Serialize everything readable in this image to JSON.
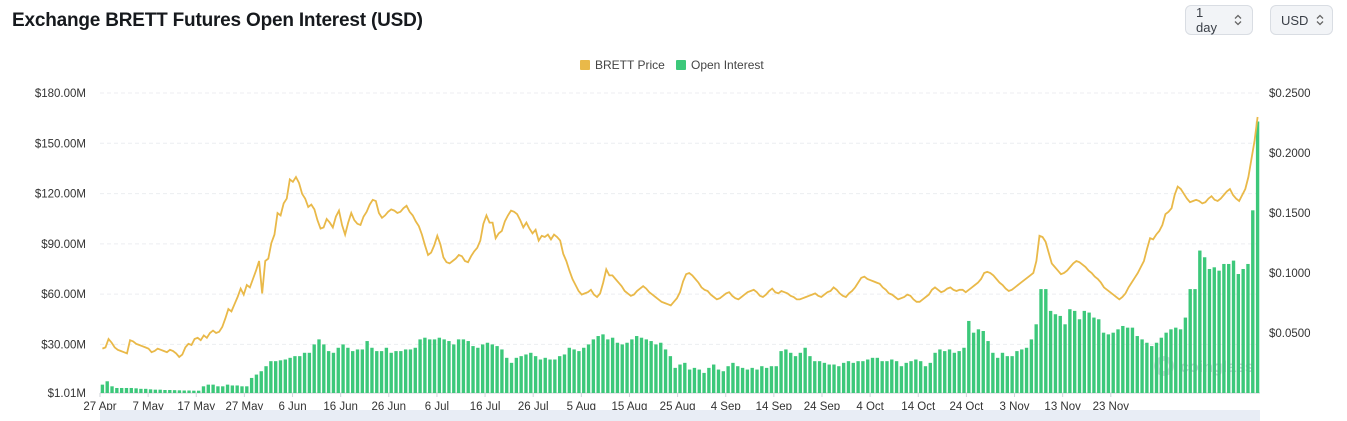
{
  "header": {
    "title": "Exchange BRETT Futures Open Interest (USD)",
    "interval_label": "1 day",
    "currency_label": "USD"
  },
  "watermark": "coinglass",
  "chart_data": {
    "type": "bar",
    "title": "Exchange BRETT Futures Open Interest (USD)",
    "legend": [
      "BRETT Price",
      "Open Interest"
    ],
    "legend_position": "top-center",
    "grid": true,
    "x_tick_labels": [
      "27 Apr",
      "7 May",
      "17 May",
      "27 May",
      "6 Jun",
      "16 Jun",
      "26 Jun",
      "6 Jul",
      "16 Jul",
      "26 Jul",
      "5 Aug",
      "15 Aug",
      "25 Aug",
      "4 Sep",
      "14 Sep",
      "24 Sep",
      "4 Oct",
      "14 Oct",
      "24 Oct",
      "3 Nov",
      "13 Nov",
      "23 Nov"
    ],
    "y_left_ticks": [
      "$1.01M",
      "$30.00M",
      "$60.00M",
      "$90.00M",
      "$120.00M",
      "$150.00M",
      "$180.00M"
    ],
    "y_right_ticks": [
      "$0.0500",
      "$0.1000",
      "$0.1500",
      "$0.2000",
      "$0.2500"
    ],
    "ylim_left": [
      1.01,
      180
    ],
    "ylim_right": [
      0,
      0.25
    ],
    "start_date": "27 Apr",
    "series": [
      {
        "name": "Open Interest",
        "type": "bar",
        "color": "#3cc87a",
        "values": [
          6,
          8,
          5,
          4,
          4,
          4,
          4,
          3.8,
          3.5,
          3.5,
          3.2,
          3,
          3,
          2.8,
          2.8,
          2.7,
          2.6,
          2.5,
          2.5,
          2.4,
          2.4,
          5,
          6,
          6,
          5,
          5,
          6,
          5.5,
          5.5,
          5,
          5,
          10,
          12,
          14,
          17,
          20,
          20,
          20.5,
          21,
          22,
          23,
          23,
          25,
          25,
          30,
          33,
          30,
          26,
          25,
          28,
          30,
          28,
          26,
          27,
          27,
          32,
          28,
          26,
          26,
          28,
          25,
          26,
          26,
          27,
          27,
          28,
          33,
          34,
          33,
          33,
          34,
          33,
          32,
          30,
          33,
          33,
          32,
          29,
          28,
          30,
          31,
          30,
          29,
          27,
          22,
          19,
          22,
          23,
          24,
          25,
          23,
          21,
          22,
          21,
          21,
          23,
          24,
          28,
          27,
          26,
          28,
          30,
          33,
          35,
          36,
          33,
          34,
          31,
          30,
          31,
          33,
          35,
          34,
          33,
          32,
          30,
          31,
          27,
          23,
          16,
          18,
          19,
          15,
          16,
          15,
          13,
          16,
          18,
          15,
          14,
          17,
          19,
          17,
          16,
          15,
          16,
          15,
          17,
          16,
          17,
          17,
          26,
          27,
          25,
          23,
          25,
          28,
          23,
          20,
          20,
          19,
          18,
          18,
          17,
          19,
          20,
          19,
          20,
          20,
          21,
          22,
          22,
          20,
          20,
          21,
          20,
          17,
          19,
          20,
          21,
          20,
          17,
          19,
          25,
          27,
          26,
          27,
          25,
          26,
          28,
          44,
          37,
          39,
          38,
          32,
          25,
          22,
          25,
          23,
          23,
          26,
          27,
          28,
          33,
          42,
          63,
          63,
          50,
          48,
          47,
          42,
          51,
          50,
          45,
          50,
          49,
          46,
          45,
          37,
          36,
          37,
          39,
          41,
          40,
          40,
          35,
          33,
          31,
          29,
          31,
          34,
          37,
          39,
          40,
          39,
          46,
          63,
          63,
          86,
          82,
          75,
          76,
          74,
          78,
          78,
          80,
          72,
          75,
          78,
          110,
          163
        ]
      },
      {
        "name": "BRETT Price",
        "type": "line",
        "color": "#e9b949",
        "values": [
          0.037,
          0.038,
          0.045,
          0.042,
          0.038,
          0.036,
          0.035,
          0.034,
          0.033,
          0.044,
          0.043,
          0.041,
          0.04,
          0.039,
          0.038,
          0.037,
          0.034,
          0.035,
          0.037,
          0.036,
          0.035,
          0.034,
          0.036,
          0.035,
          0.033,
          0.03,
          0.032,
          0.038,
          0.041,
          0.04,
          0.045,
          0.046,
          0.044,
          0.048,
          0.046,
          0.05,
          0.052,
          0.05,
          0.051,
          0.055,
          0.062,
          0.07,
          0.068,
          0.074,
          0.08,
          0.087,
          0.082,
          0.09,
          0.088,
          0.095,
          0.102,
          0.11,
          0.083,
          0.11,
          0.112,
          0.125,
          0.132,
          0.15,
          0.148,
          0.158,
          0.162,
          0.178,
          0.176,
          0.18,
          0.175,
          0.166,
          0.162,
          0.155,
          0.157,
          0.153,
          0.144,
          0.137,
          0.138,
          0.145,
          0.142,
          0.138,
          0.147,
          0.152,
          0.14,
          0.132,
          0.142,
          0.15,
          0.144,
          0.141,
          0.14,
          0.147,
          0.151,
          0.157,
          0.161,
          0.16,
          0.15,
          0.146,
          0.148,
          0.151,
          0.153,
          0.152,
          0.15,
          0.151,
          0.154,
          0.156,
          0.151,
          0.148,
          0.143,
          0.139,
          0.132,
          0.123,
          0.115,
          0.117,
          0.123,
          0.131,
          0.124,
          0.113,
          0.109,
          0.108,
          0.11,
          0.112,
          0.115,
          0.114,
          0.11,
          0.109,
          0.114,
          0.118,
          0.121,
          0.127,
          0.141,
          0.148,
          0.142,
          0.142,
          0.129,
          0.133,
          0.135,
          0.143,
          0.148,
          0.152,
          0.151,
          0.149,
          0.144,
          0.138,
          0.142,
          0.137,
          0.133,
          0.136,
          0.127,
          0.131,
          0.13,
          0.132,
          0.128,
          0.132,
          0.13,
          0.127,
          0.116,
          0.11,
          0.102,
          0.095,
          0.09,
          0.085,
          0.082,
          0.083,
          0.084,
          0.086,
          0.082,
          0.08,
          0.083,
          0.092,
          0.103,
          0.098,
          0.098,
          0.095,
          0.092,
          0.089,
          0.085,
          0.083,
          0.081,
          0.082,
          0.085,
          0.087,
          0.089,
          0.087,
          0.084,
          0.082,
          0.08,
          0.078,
          0.076,
          0.075,
          0.074,
          0.073,
          0.076,
          0.079,
          0.084,
          0.093,
          0.099,
          0.1,
          0.098,
          0.095,
          0.092,
          0.088,
          0.086,
          0.085,
          0.082,
          0.08,
          0.078,
          0.079,
          0.081,
          0.083,
          0.084,
          0.081,
          0.079,
          0.078,
          0.08,
          0.082,
          0.084,
          0.085,
          0.086,
          0.084,
          0.081,
          0.08,
          0.082,
          0.085,
          0.087,
          0.084,
          0.083,
          0.085,
          0.084,
          0.083,
          0.081,
          0.08,
          0.078,
          0.078,
          0.079,
          0.08,
          0.081,
          0.082,
          0.083,
          0.081,
          0.08,
          0.082,
          0.084,
          0.085,
          0.088,
          0.086,
          0.083,
          0.081,
          0.08,
          0.083,
          0.085,
          0.088,
          0.092,
          0.096,
          0.097,
          0.095,
          0.094,
          0.093,
          0.092,
          0.091,
          0.088,
          0.086,
          0.083,
          0.082,
          0.08,
          0.078,
          0.079,
          0.08,
          0.082,
          0.081,
          0.078,
          0.076,
          0.076,
          0.078,
          0.08,
          0.082,
          0.086,
          0.088,
          0.086,
          0.084,
          0.085,
          0.087,
          0.088,
          0.086,
          0.085,
          0.086,
          0.086,
          0.084,
          0.086,
          0.088,
          0.09,
          0.092,
          0.095,
          0.1,
          0.101,
          0.1,
          0.098,
          0.095,
          0.092,
          0.09,
          0.087,
          0.085,
          0.086,
          0.088,
          0.09,
          0.092,
          0.094,
          0.096,
          0.098,
          0.1,
          0.11,
          0.131,
          0.13,
          0.126,
          0.117,
          0.108,
          0.105,
          0.102,
          0.099,
          0.1,
          0.102,
          0.105,
          0.108,
          0.11,
          0.109,
          0.107,
          0.105,
          0.102,
          0.1,
          0.097,
          0.095,
          0.092,
          0.088,
          0.086,
          0.084,
          0.082,
          0.08,
          0.078,
          0.08,
          0.083,
          0.088,
          0.092,
          0.096,
          0.1,
          0.105,
          0.11,
          0.12,
          0.129,
          0.128,
          0.132,
          0.135,
          0.14,
          0.149,
          0.151,
          0.154,
          0.165,
          0.172,
          0.17,
          0.166,
          0.162,
          0.159,
          0.16,
          0.161,
          0.16,
          0.158,
          0.159,
          0.162,
          0.164,
          0.161,
          0.16,
          0.162,
          0.165,
          0.168,
          0.17,
          0.165,
          0.162,
          0.16,
          0.165,
          0.17,
          0.18,
          0.195,
          0.21,
          0.23
        ]
      }
    ]
  }
}
